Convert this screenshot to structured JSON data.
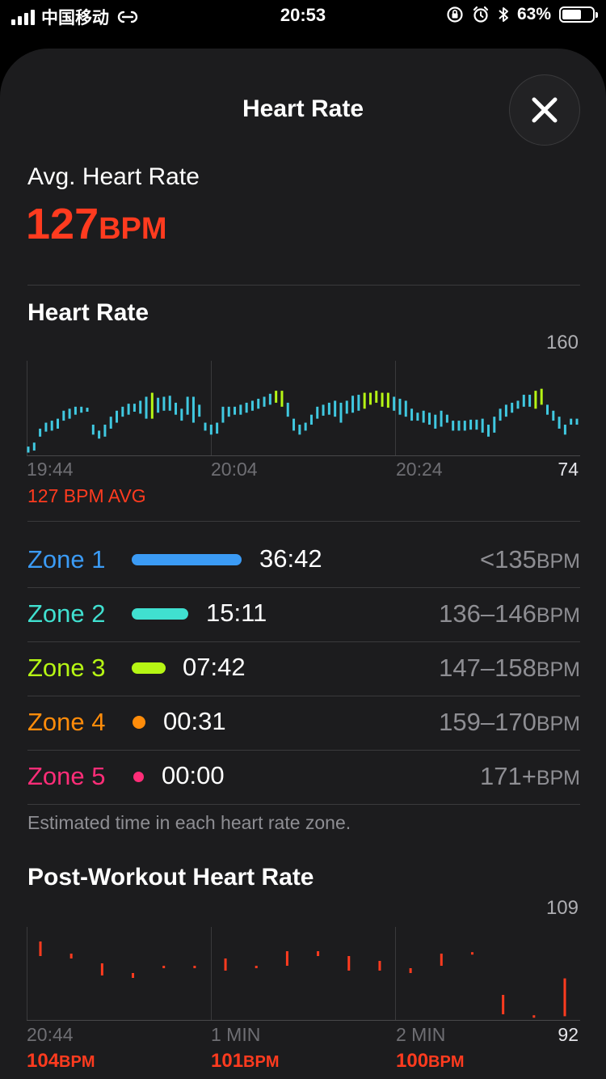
{
  "status_bar": {
    "carrier": "中国移动",
    "time": "20:53",
    "battery": "63%",
    "battery_level": 0.63
  },
  "sheet": {
    "title": "Heart Rate",
    "close_icon": "close-icon"
  },
  "summary": {
    "label": "Avg. Heart Rate",
    "value": "127",
    "unit": "BPM"
  },
  "heart_rate_chart": {
    "title": "Heart Rate",
    "max_label": "160",
    "min_label": "74",
    "x_labels": [
      "19:44",
      "20:04",
      "20:24"
    ],
    "avg_caption": "127 BPM AVG"
  },
  "zones": {
    "items": [
      {
        "name": "Zone 1",
        "time": "36:42",
        "range": "<135",
        "unit": "BPM",
        "color": "#3b9bf5",
        "fraction": 0.61
      },
      {
        "name": "Zone 2",
        "time": "15:11",
        "range": "136–146",
        "unit": "BPM",
        "color": "#40e0d0",
        "fraction": 0.25
      },
      {
        "name": "Zone 3",
        "time": "07:42",
        "range": "147–158",
        "unit": "BPM",
        "color": "#b6f614",
        "fraction": 0.13
      },
      {
        "name": "Zone 4",
        "time": "00:31",
        "range": "159–170",
        "unit": "BPM",
        "color": "#ff8c0a",
        "fraction": 0.01
      },
      {
        "name": "Zone 5",
        "time": "00:00",
        "range": "171+",
        "unit": "BPM",
        "color": "#ff2d78",
        "fraction": 0.0
      }
    ],
    "note": "Estimated time in each heart rate zone."
  },
  "post_workout": {
    "title": "Post-Workout Heart Rate",
    "max_label": "109",
    "min_label": "92",
    "x_labels": [
      "20:44",
      "1 MIN",
      "2 MIN"
    ],
    "bpm_labels": [
      {
        "value": "104",
        "unit": "BPM"
      },
      {
        "value": "101",
        "unit": "BPM"
      },
      {
        "value": "100",
        "unit": "BPM"
      }
    ]
  },
  "chart_data": [
    {
      "type": "bar",
      "title": "Heart Rate",
      "xlabel": "",
      "ylabel": "",
      "ylim": [
        74,
        160
      ],
      "x_ticks": [
        "19:44",
        "20:04",
        "20:24"
      ],
      "annotations": [
        "127 BPM AVG"
      ],
      "grid": true,
      "values": [
        [
          76,
          82
        ],
        [
          78,
          86
        ],
        [
          92,
          100
        ],
        [
          97,
          106
        ],
        [
          98,
          108
        ],
        [
          100,
          110
        ],
        [
          108,
          118
        ],
        [
          110,
          120
        ],
        [
          114,
          122
        ],
        [
          116,
          122
        ],
        [
          117,
          121
        ],
        [
          94,
          104
        ],
        [
          90,
          98
        ],
        [
          92,
          104
        ],
        [
          100,
          112
        ],
        [
          106,
          118
        ],
        [
          112,
          122
        ],
        [
          114,
          125
        ],
        [
          117,
          125
        ],
        [
          115,
          128
        ],
        [
          110,
          132
        ],
        [
          110,
          136
        ],
        [
          116,
          131
        ],
        [
          118,
          132
        ],
        [
          118,
          133
        ],
        [
          114,
          126
        ],
        [
          108,
          120
        ],
        [
          114,
          132
        ],
        [
          106,
          132
        ],
        [
          112,
          124
        ],
        [
          98,
          106
        ],
        [
          94,
          104
        ],
        [
          95,
          106
        ],
        [
          106,
          122
        ],
        [
          112,
          122
        ],
        [
          114,
          122
        ],
        [
          114,
          124
        ],
        [
          116,
          126
        ],
        [
          118,
          128
        ],
        [
          120,
          130
        ],
        [
          122,
          132
        ],
        [
          124,
          135
        ],
        [
          126,
          138
        ],
        [
          122,
          138
        ],
        [
          112,
          126
        ],
        [
          98,
          110
        ],
        [
          94,
          104
        ],
        [
          98,
          106
        ],
        [
          104,
          114
        ],
        [
          110,
          122
        ],
        [
          113,
          124
        ],
        [
          114,
          126
        ],
        [
          112,
          128
        ],
        [
          106,
          126
        ],
        [
          115,
          128
        ],
        [
          116,
          133
        ],
        [
          118,
          134
        ],
        [
          120,
          136
        ],
        [
          124,
          136
        ],
        [
          126,
          138
        ],
        [
          122,
          136
        ],
        [
          121,
          136
        ],
        [
          118,
          132
        ],
        [
          114,
          130
        ],
        [
          112,
          128
        ],
        [
          108,
          120
        ],
        [
          108,
          116
        ],
        [
          106,
          118
        ],
        [
          104,
          116
        ],
        [
          100,
          114
        ],
        [
          102,
          118
        ],
        [
          106,
          114
        ],
        [
          98,
          108
        ],
        [
          98,
          108
        ],
        [
          98,
          108
        ],
        [
          99,
          109
        ],
        [
          99,
          109
        ],
        [
          96,
          110
        ],
        [
          92,
          104
        ],
        [
          96,
          112
        ],
        [
          108,
          120
        ],
        [
          112,
          124
        ],
        [
          116,
          126
        ],
        [
          120,
          128
        ],
        [
          122,
          134
        ],
        [
          122,
          134
        ],
        [
          120,
          138
        ],
        [
          124,
          140
        ],
        [
          114,
          124
        ],
        [
          108,
          118
        ],
        [
          100,
          112
        ],
        [
          94,
          104
        ],
        [
          104,
          110
        ],
        [
          104,
          110
        ]
      ],
      "colors": [
        "#40c8e0",
        "#b6f614"
      ]
    },
    {
      "type": "bar",
      "title": "Post-Workout Heart Rate",
      "xlabel": "",
      "ylabel": "",
      "ylim": [
        92,
        109
      ],
      "x_ticks": [
        "20:44",
        "1 MIN",
        "2 MIN"
      ],
      "grid": true,
      "values": [
        [
          105,
          108
        ],
        [
          104.5,
          105.5
        ],
        [
          101,
          103.5
        ],
        [
          100.5,
          101.5
        ],
        [
          102.5,
          103
        ],
        [
          102.5,
          103
        ],
        [
          102,
          104.5
        ],
        [
          102.5,
          103
        ],
        [
          103,
          106
        ],
        [
          105,
          106
        ],
        [
          102,
          105
        ],
        [
          102,
          104
        ],
        [
          101.5,
          102.5
        ],
        [
          103,
          105.5
        ],
        [
          105.5,
          105.8
        ],
        [
          93,
          97
        ],
        [
          92.5,
          92.8
        ],
        [
          92.6,
          100.4
        ]
      ]
    }
  ]
}
